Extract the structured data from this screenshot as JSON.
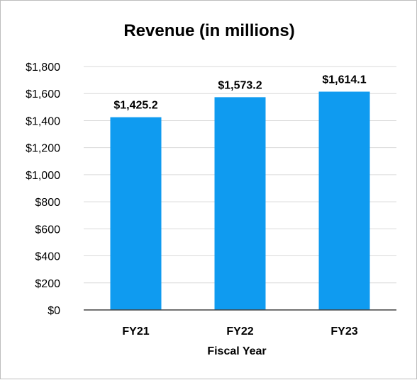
{
  "chart_data": {
    "type": "bar",
    "title": "Revenue (in millions)",
    "xlabel": "Fiscal Year",
    "ylabel": "",
    "categories": [
      "FY21",
      "FY22",
      "FY23"
    ],
    "values": [
      1425.2,
      1573.2,
      1614.1
    ],
    "data_labels": [
      "$1,425.2",
      "$1,573.2",
      "$1,614.1"
    ],
    "ylim": [
      0,
      1800
    ],
    "yticks": [
      0,
      200,
      400,
      600,
      800,
      1000,
      1200,
      1400,
      1600,
      1800
    ],
    "ytick_labels": [
      "$0",
      "$200",
      "$400",
      "$600",
      "$800",
      "$1,000",
      "$1,200",
      "$1,400",
      "$1,600",
      "$1,800"
    ],
    "grid": true,
    "legend": "none",
    "bar_color": "#0f9bf0",
    "grid_color": "#d9d9d9",
    "axis_color": "#444444"
  }
}
